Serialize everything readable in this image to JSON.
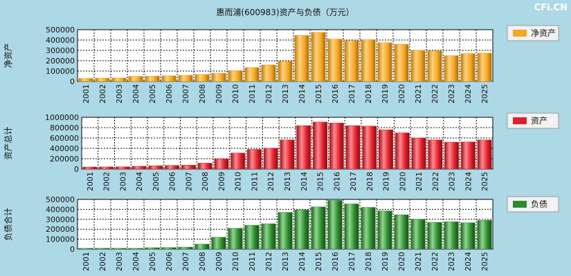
{
  "title": "惠而浦(600983)资产与负债（万元）",
  "watermark": "CFi.CN",
  "colors": {
    "background": "#add8e6",
    "plot_bg": "#ffffff",
    "legend_bg": "#f2f2f2",
    "equity": "#f5a623",
    "assets": "#e0212a",
    "liabilities": "#2e8b2e"
  },
  "chart_data": [
    {
      "type": "bar",
      "id": "equity",
      "ylabel": "净资产",
      "legend": "净资产",
      "ylim": [
        0,
        500000
      ],
      "yticks": [
        0,
        100000,
        200000,
        300000,
        400000,
        500000
      ],
      "categories": [
        "2001",
        "2002",
        "2003",
        "2004",
        "2005",
        "2006",
        "2007",
        "2008",
        "2009",
        "2010",
        "2011",
        "2012",
        "2013",
        "2014",
        "2015",
        "2016",
        "2017",
        "2018",
        "2019",
        "2020",
        "2021",
        "2022",
        "2023",
        "2024",
        "2025"
      ],
      "values": [
        30000,
        32000,
        34000,
        50000,
        52000,
        55000,
        60000,
        68000,
        80000,
        105000,
        135000,
        160000,
        195000,
        445000,
        475000,
        410000,
        395000,
        405000,
        375000,
        360000,
        300000,
        295000,
        250000,
        270000,
        275000
      ]
    },
    {
      "type": "bar",
      "id": "assets",
      "ylabel": "资产总计",
      "legend": "资产",
      "ylim": [
        0,
        1000000
      ],
      "yticks": [
        0,
        200000,
        400000,
        600000,
        800000,
        1000000
      ],
      "categories": [
        "2001",
        "2002",
        "2003",
        "2004",
        "2005",
        "2006",
        "2007",
        "2008",
        "2009",
        "2010",
        "2011",
        "2012",
        "2013",
        "2014",
        "2015",
        "2016",
        "2017",
        "2018",
        "2019",
        "2020",
        "2021",
        "2022",
        "2023",
        "2024",
        "2025"
      ],
      "values": [
        40000,
        42000,
        44000,
        55000,
        65000,
        70000,
        75000,
        115000,
        195000,
        310000,
        380000,
        405000,
        565000,
        840000,
        910000,
        890000,
        840000,
        830000,
        760000,
        700000,
        600000,
        565000,
        520000,
        525000,
        565000
      ]
    },
    {
      "type": "bar",
      "id": "liabilities",
      "ylabel": "负债合计",
      "legend": "负债",
      "ylim": [
        0,
        500000
      ],
      "yticks": [
        0,
        100000,
        200000,
        300000,
        400000,
        500000
      ],
      "categories": [
        "2001",
        "2002",
        "2003",
        "2004",
        "2005",
        "2006",
        "2007",
        "2008",
        "2009",
        "2010",
        "2011",
        "2012",
        "2013",
        "2014",
        "2015",
        "2016",
        "2017",
        "2018",
        "2019",
        "2020",
        "2021",
        "2022",
        "2023",
        "2024",
        "2025"
      ],
      "values": [
        8000,
        9000,
        9000,
        8000,
        14000,
        16000,
        20000,
        50000,
        120000,
        210000,
        240000,
        255000,
        370000,
        395000,
        425000,
        490000,
        455000,
        420000,
        385000,
        345000,
        300000,
        270000,
        275000,
        265000,
        290000
      ]
    }
  ]
}
